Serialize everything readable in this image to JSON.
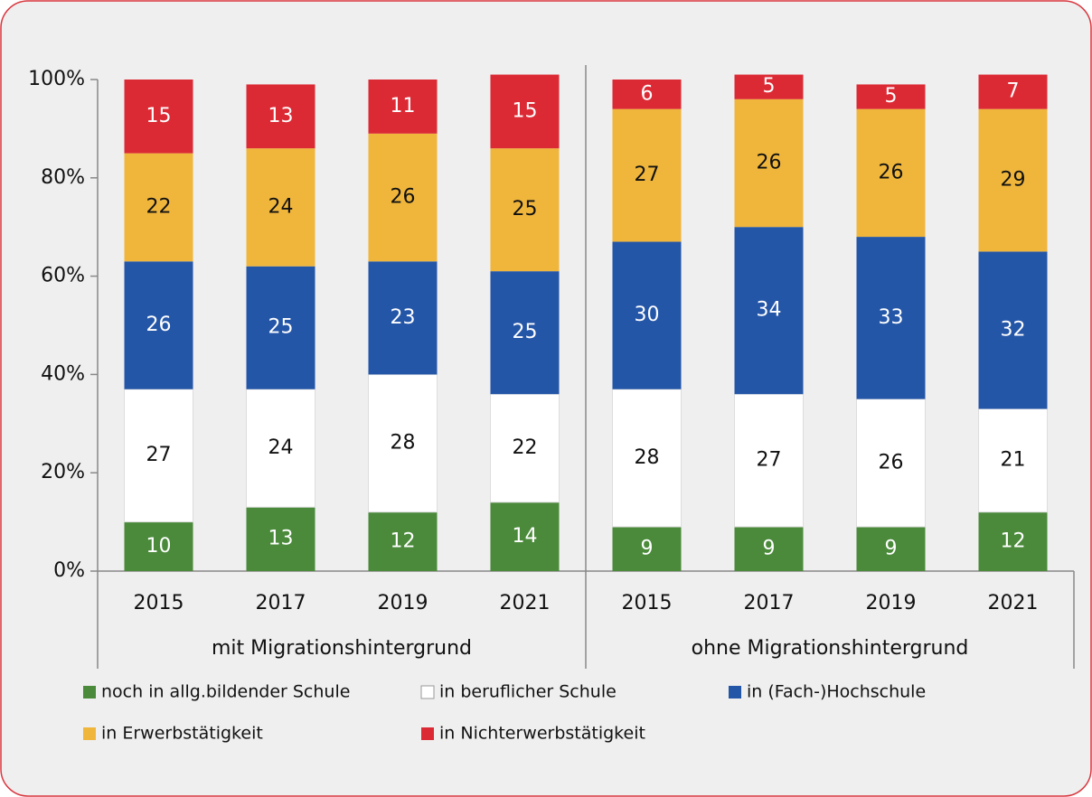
{
  "chart_data": {
    "type": "stacked_bar",
    "categories": [
      "2015",
      "2017",
      "2019",
      "2021",
      "2015",
      "2017",
      "2019",
      "2021"
    ],
    "groups": [
      "mit Migrationshintergrund",
      "ohne Migrationshintergrund"
    ],
    "ylim": [
      0,
      100
    ],
    "yticks": [
      {
        "value": 0,
        "label": "0%"
      },
      {
        "value": 20,
        "label": "20%"
      },
      {
        "value": 40,
        "label": "40%"
      },
      {
        "value": 60,
        "label": "60%"
      },
      {
        "value": 80,
        "label": "80%"
      },
      {
        "value": 100,
        "label": "100%"
      }
    ],
    "series": [
      {
        "name": "noch in allg.bildender Schule",
        "color": "#4a8a3a",
        "label_color": "#ffffff",
        "values": [
          10,
          13,
          12,
          14,
          9,
          9,
          9,
          12
        ]
      },
      {
        "name": "in beruflicher Schule",
        "color": "#ffffff",
        "label_color": "#111111",
        "values": [
          27,
          24,
          28,
          22,
          28,
          27,
          26,
          21
        ]
      },
      {
        "name": "in (Fach-)Hochschule",
        "color": "#2456a8",
        "label_color": "#ffffff",
        "values": [
          26,
          25,
          23,
          25,
          30,
          34,
          33,
          32
        ]
      },
      {
        "name": "in Erwerbstätigkeit",
        "color": "#f0b63c",
        "label_color": "#111111",
        "values": [
          22,
          24,
          26,
          25,
          27,
          26,
          26,
          29
        ]
      },
      {
        "name": "in Nichterwerbstätigkeit",
        "color": "#dc2a35",
        "label_color": "#ffffff",
        "values": [
          15,
          13,
          11,
          15,
          6,
          5,
          5,
          7
        ]
      }
    ]
  }
}
